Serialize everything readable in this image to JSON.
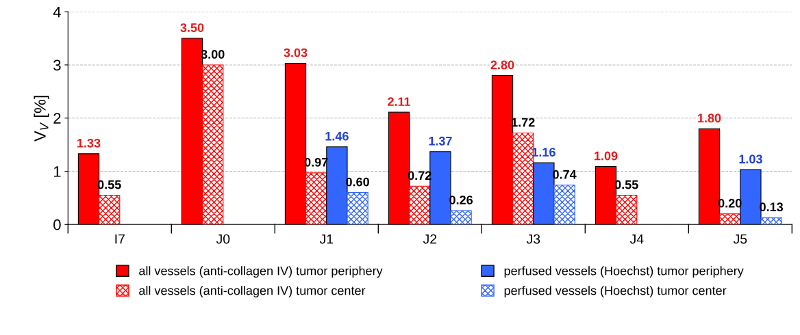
{
  "chart_data": {
    "type": "bar",
    "ylabel": "V$_{V}$ [%]",
    "categories": [
      "I7",
      "J0",
      "J1",
      "J2",
      "J3",
      "J4",
      "J5"
    ],
    "series": [
      {
        "name": "all vessels (anti-collagen IV) tumor periphery",
        "color": "#ff0000",
        "values": [
          1.33,
          3.5,
          3.03,
          2.11,
          2.8,
          1.09,
          1.8
        ],
        "value_labels": [
          "1.33",
          "3.50",
          "3.03",
          "2.11",
          "2.80",
          "1.09",
          "1.80"
        ]
      },
      {
        "name": "all vessels (anti-collagen IV) tumor center",
        "color": "#ff0000",
        "values": [
          0.55,
          3.0,
          0.97,
          0.72,
          1.72,
          0.55,
          0.2
        ],
        "value_labels": [
          "0.55",
          "3.00",
          "0.97",
          "0.72",
          "1.72",
          "0.55",
          "0.20"
        ]
      },
      {
        "name": "perfused vessels (Hoechst) tumor periphery",
        "color": "#3366ff",
        "values": [
          null,
          null,
          1.46,
          1.37,
          1.16,
          null,
          1.03
        ],
        "value_labels": [
          null,
          null,
          "1.46",
          "1.37",
          "1.16",
          null,
          "1.03"
        ]
      },
      {
        "name": "perfused vessels (Hoechst) tumor center",
        "color": "#3366ff",
        "values": [
          null,
          null,
          0.6,
          0.26,
          0.74,
          null,
          0.13
        ],
        "value_labels": [
          null,
          null,
          "0.60",
          "0.26",
          "0.74",
          null,
          "0.13"
        ]
      }
    ],
    "ylim": [
      0,
      4
    ],
    "yticks": [
      0,
      1,
      2,
      3,
      4
    ],
    "grid": "y",
    "legend": "bottom"
  }
}
